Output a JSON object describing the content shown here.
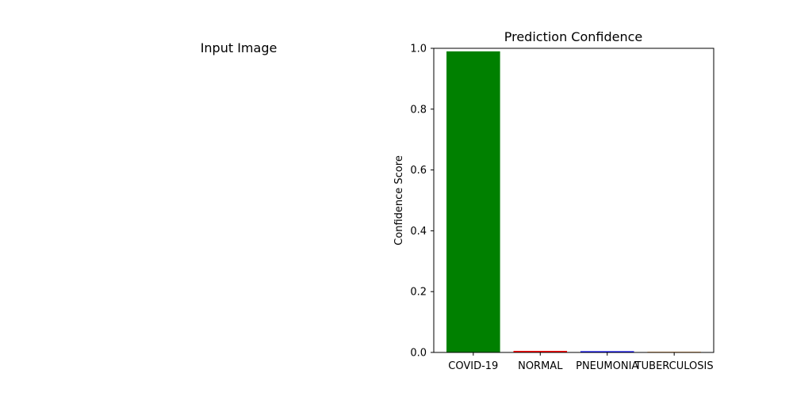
{
  "panels": {
    "input_image_title": "Input Image"
  },
  "chart_data": {
    "type": "bar",
    "title": "Prediction Confidence",
    "xlabel": "",
    "ylabel": "Confidence Score",
    "categories": [
      "COVID-19",
      "NORMAL",
      "PNEUMONIA",
      "TUBERCULOSIS"
    ],
    "values": [
      0.99,
      0.005,
      0.004,
      0.002
    ],
    "colors": [
      "#008000",
      "#ff0000",
      "#0000ff",
      "#ff8c00"
    ],
    "ylim": [
      0,
      1.0
    ],
    "yticks": [
      "0.0",
      "0.2",
      "0.4",
      "0.6",
      "0.8",
      "1.0"
    ],
    "grid": false
  }
}
